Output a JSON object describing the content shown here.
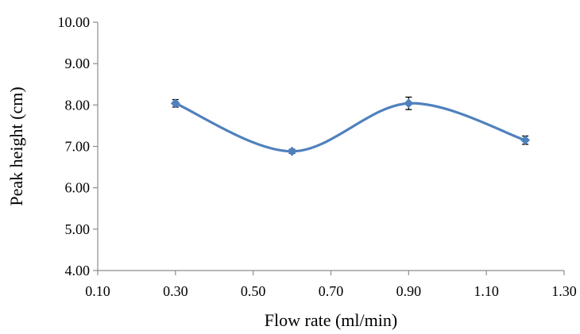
{
  "chart_data": {
    "type": "line",
    "title": "",
    "xlabel": "Flow rate (ml/min)",
    "ylabel": "Peak height (cm)",
    "xlim": [
      0.1,
      1.3
    ],
    "ylim": [
      4.0,
      10.0
    ],
    "xticks": [
      "0.10",
      "0.30",
      "0.50",
      "0.70",
      "0.90",
      "1.10",
      "1.30"
    ],
    "yticks": [
      "4.00",
      "5.00",
      "6.00",
      "7.00",
      "8.00",
      "9.00",
      "10.00"
    ],
    "xtick_values": [
      0.1,
      0.3,
      0.5,
      0.7,
      0.9,
      1.1,
      1.3
    ],
    "ytick_values": [
      4.0,
      5.0,
      6.0,
      7.0,
      8.0,
      9.0,
      10.0
    ],
    "grid": false,
    "legend": "none",
    "smooth": true,
    "series": [
      {
        "color": "#4f81bd",
        "marker": "diamond",
        "x": [
          0.3,
          0.6,
          0.9,
          1.2
        ],
        "y": [
          8.04,
          6.88,
          8.04,
          7.15
        ],
        "error": [
          0.09,
          0.05,
          0.15,
          0.1
        ]
      }
    ]
  }
}
